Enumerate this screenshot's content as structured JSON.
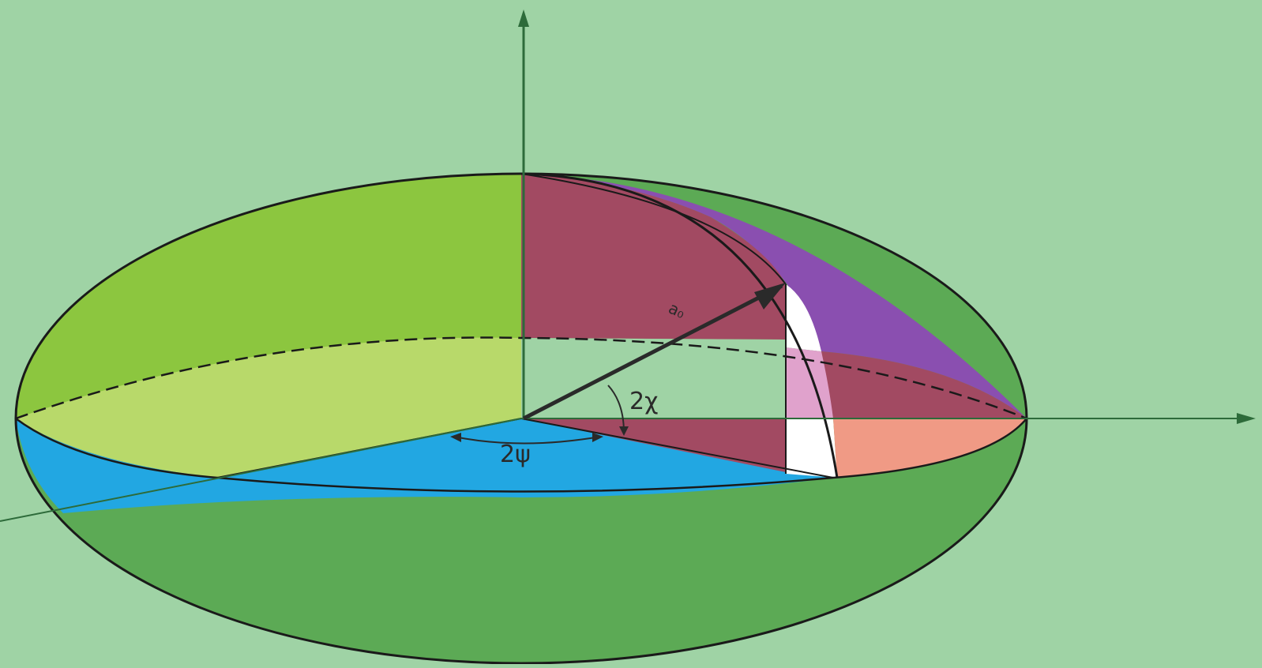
{
  "colors": {
    "background": "#9fd3a5",
    "upper_left": "#8cc63f",
    "upper_left_front": "#b8d96a",
    "lower_body": "#5caa55",
    "equatorial_plane": "#22a7e2",
    "meridian_section": "#a24a62",
    "outer_meridian_band": "#8a4fb0",
    "pink_patch": "#e0a2cc",
    "salmon_patch": "#f09a85",
    "white_patch": "#ffffff",
    "outline": "#1a1a1a",
    "axis": "#2d6b3a",
    "vector": "#2a2a2a"
  },
  "labels": {
    "vector": "a₀",
    "elevation_angle": "2χ",
    "azimuth_angle": "2ψ"
  },
  "icons": {
    "vertical_axis_arrow": "arrowhead-up-icon",
    "horizontal_axis_arrow": "arrowhead-right-icon",
    "vector_arrow": "arrowhead-icon"
  }
}
